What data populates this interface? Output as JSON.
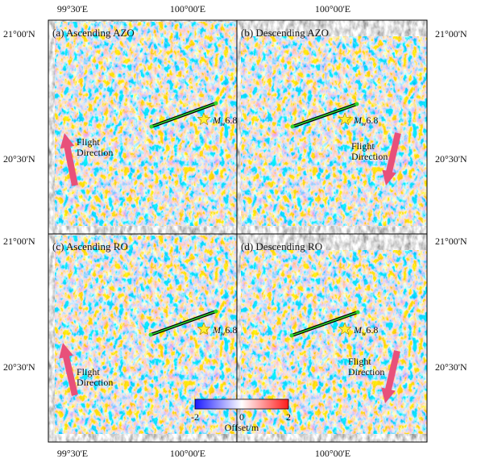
{
  "panels": [
    {
      "label": "(a) Ascending AZO",
      "arrow": "up"
    },
    {
      "label": "(b) Descending AZO",
      "arrow": "down"
    },
    {
      "label": "(c) Ascending RO",
      "arrow": "up"
    },
    {
      "label": "(d) Descending RO",
      "arrow": "down"
    }
  ],
  "magnitude": {
    "symbol": "M",
    "subscript": "w",
    "value": "6.8"
  },
  "flight_label": [
    "Flight",
    "Direction"
  ],
  "axes": {
    "top_ticks": [
      "99°30'E",
      "100°00'E",
      "100°00'E"
    ],
    "bottom_ticks": [
      "99°30'E",
      "100°00'E",
      "100°00'E"
    ],
    "left_ticks": [
      "21°00'N",
      "20°30'N",
      "21°00'N",
      "20°30'N"
    ],
    "right_ticks": [
      "21°00'N",
      "20°30'N",
      "21°00'N",
      "20°30'N"
    ]
  },
  "colorbar": {
    "ticks": [
      "-2",
      "0",
      "2"
    ],
    "label": "Offset/m"
  }
}
